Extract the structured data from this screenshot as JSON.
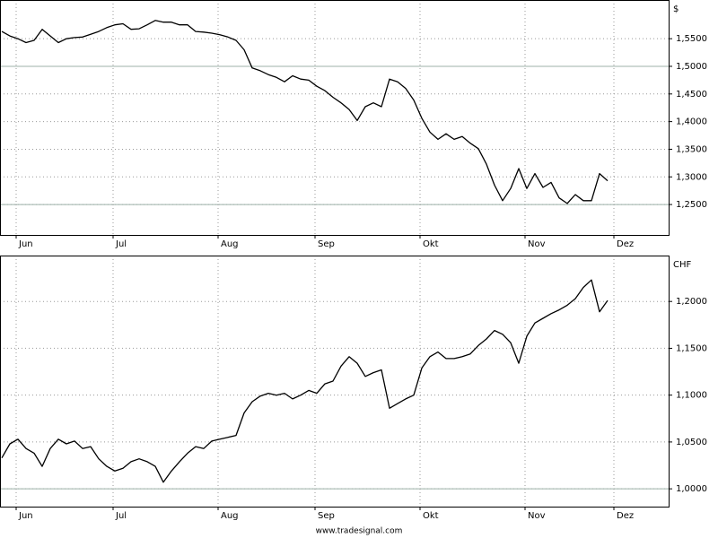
{
  "chart_data": [
    {
      "type": "line",
      "ylabel": "$",
      "categories": [
        null,
        null,
        "Jun",
        null,
        null,
        null,
        null,
        null,
        null,
        null,
        null,
        null,
        null,
        null,
        "Jul",
        null,
        null,
        null,
        null,
        null,
        null,
        null,
        null,
        null,
        null,
        null,
        null,
        "Aug",
        null,
        null,
        null,
        null,
        null,
        null,
        null,
        null,
        null,
        null,
        null,
        "Sep",
        null,
        null,
        null,
        null,
        null,
        null,
        null,
        null,
        null,
        null,
        null,
        null,
        "Okt",
        null,
        null,
        null,
        null,
        null,
        null,
        null,
        null,
        null,
        null,
        null,
        null,
        "Nov",
        null,
        null,
        null,
        null,
        null,
        null,
        null,
        null,
        null,
        null,
        "Dez"
      ],
      "series": [
        {
          "color": "#000000",
          "values": [
            1.563,
            1.555,
            1.55,
            1.543,
            1.547,
            1.567,
            1.555,
            1.543,
            1.55,
            1.552,
            1.553,
            1.558,
            1.563,
            1.57,
            1.575,
            1.577,
            1.567,
            1.568,
            1.575,
            1.583,
            1.58,
            1.58,
            1.575,
            1.575,
            1.563,
            1.562,
            1.56,
            1.557,
            1.553,
            1.547,
            1.53,
            1.497,
            1.492,
            1.485,
            1.48,
            1.472,
            1.483,
            1.477,
            1.475,
            1.464,
            1.456,
            1.444,
            1.434,
            1.422,
            1.402,
            1.427,
            1.434,
            1.427,
            1.477,
            1.472,
            1.46,
            1.439,
            1.406,
            1.381,
            1.368,
            1.378,
            1.368,
            1.373,
            1.361,
            1.351,
            1.323,
            1.285,
            1.257,
            1.279,
            1.315,
            1.279,
            1.306,
            1.281,
            1.29,
            1.262,
            1.252,
            1.268,
            1.257,
            1.257,
            1.306,
            1.293,
            null
          ]
        }
      ],
      "ylim": [
        1.195,
        1.62
      ],
      "yticks": [
        {
          "value": 1.25,
          "label": "1,2500"
        },
        {
          "value": 1.3,
          "label": "1,3000"
        },
        {
          "value": 1.35,
          "label": "1,3500"
        },
        {
          "value": 1.4,
          "label": "1,4000"
        },
        {
          "value": 1.45,
          "label": "1,4500"
        },
        {
          "value": 1.5,
          "label": "1,5000"
        },
        {
          "value": 1.55,
          "label": "1,5500"
        }
      ],
      "reference_lines": [
        1.5,
        1.25
      ],
      "grid": true
    },
    {
      "type": "line",
      "ylabel": "CHF",
      "categories": [
        null,
        null,
        "Jun",
        null,
        null,
        null,
        null,
        null,
        null,
        null,
        null,
        null,
        null,
        null,
        "Jul",
        null,
        null,
        null,
        null,
        null,
        null,
        null,
        null,
        null,
        null,
        null,
        null,
        "Aug",
        null,
        null,
        null,
        null,
        null,
        null,
        null,
        null,
        null,
        null,
        null,
        "Sep",
        null,
        null,
        null,
        null,
        null,
        null,
        null,
        null,
        null,
        null,
        null,
        null,
        "Okt",
        null,
        null,
        null,
        null,
        null,
        null,
        null,
        null,
        null,
        null,
        null,
        null,
        "Nov",
        null,
        null,
        null,
        null,
        null,
        null,
        null,
        null,
        null,
        null,
        "Dez"
      ],
      "series": [
        {
          "color": "#000000",
          "values": [
            1.033,
            1.048,
            1.053,
            1.043,
            1.038,
            1.024,
            1.043,
            1.053,
            1.048,
            1.051,
            1.043,
            1.045,
            1.032,
            1.024,
            1.019,
            1.022,
            1.029,
            1.032,
            1.029,
            1.024,
            1.007,
            1.019,
            1.029,
            1.038,
            1.045,
            1.043,
            1.051,
            1.053,
            1.055,
            1.057,
            1.081,
            1.093,
            1.099,
            1.102,
            1.1,
            1.102,
            1.096,
            1.1,
            1.105,
            1.102,
            1.112,
            1.115,
            1.131,
            1.141,
            1.134,
            1.12,
            1.124,
            1.127,
            1.086,
            1.091,
            1.096,
            1.1,
            1.129,
            1.141,
            1.146,
            1.139,
            1.139,
            1.141,
            1.144,
            1.153,
            1.16,
            1.169,
            1.165,
            1.156,
            1.134,
            1.163,
            1.177,
            1.182,
            1.187,
            1.191,
            1.196,
            1.203,
            1.215,
            1.223,
            1.189,
            1.201,
            null
          ]
        }
      ],
      "ylim": [
        0.981,
        1.249
      ],
      "yticks": [
        {
          "value": 1.0,
          "label": "1,0000"
        },
        {
          "value": 1.05,
          "label": "1,0500"
        },
        {
          "value": 1.1,
          "label": "1,1000"
        },
        {
          "value": 1.15,
          "label": "1,1500"
        },
        {
          "value": 1.2,
          "label": "1,2000"
        }
      ],
      "reference_lines": [
        1.0
      ],
      "grid": true
    }
  ],
  "footer": "www.tradesignal.com"
}
